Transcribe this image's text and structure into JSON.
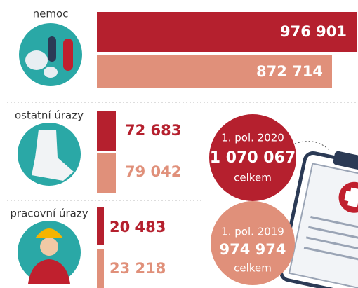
{
  "categories": [
    {
      "label": "nemoc",
      "value_2020": "976 901",
      "value_2019": "872 714"
    },
    {
      "label": "ostatní úrazy",
      "value_2020": "72 683",
      "value_2019": "79 042"
    },
    {
      "label": "pracovní úrazy",
      "value_2020": "20 483",
      "value_2019": "23 218"
    }
  ],
  "totals": [
    {
      "period": "1. pol. 2020",
      "value": "1 070 067",
      "note": "celkem"
    },
    {
      "period": "1. pol. 2019",
      "value": "974 974",
      "note": "celkem"
    }
  ]
}
